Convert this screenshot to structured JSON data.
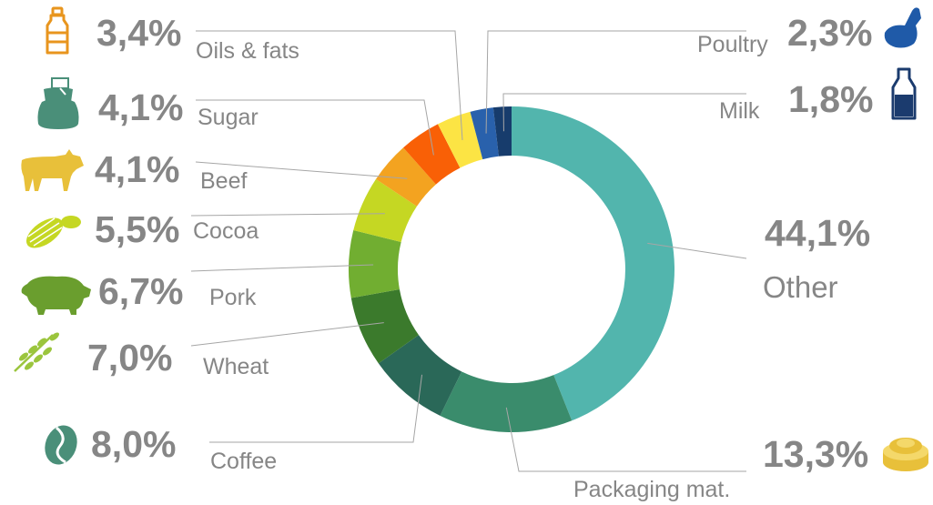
{
  "chart_data": {
    "type": "donut",
    "unit": "%",
    "slices": [
      {
        "label": "Other",
        "value": 44.1,
        "display": "44,1%",
        "color": "#52b5ad",
        "icon": ""
      },
      {
        "label": "Packaging mat.",
        "value": 13.3,
        "display": "13,3%",
        "color": "#3a8c6c",
        "icon": "packaging-icon"
      },
      {
        "label": "Coffee",
        "value": 8.0,
        "display": "8,0%",
        "color": "#2a6858",
        "icon": "coffee-bean-icon"
      },
      {
        "label": "Wheat",
        "value": 7.0,
        "display": "7,0%",
        "color": "#3b7a2c",
        "icon": "wheat-icon"
      },
      {
        "label": "Pork",
        "value": 6.7,
        "display": "6,7%",
        "color": "#71ae31",
        "icon": "pig-icon"
      },
      {
        "label": "Cocoa",
        "value": 5.5,
        "display": "5,5%",
        "color": "#c5d723",
        "icon": "cocoa-pod-icon"
      },
      {
        "label": "Beef",
        "value": 4.1,
        "display": "4,1%",
        "color": "#f3a320",
        "icon": "cow-icon"
      },
      {
        "label": "Sugar",
        "value": 4.1,
        "display": "4,1%",
        "color": "#f96006",
        "icon": "sugar-sack-icon"
      },
      {
        "label": "Oils & fats",
        "value": 3.4,
        "display": "3,4%",
        "color": "#fce444",
        "icon": "oil-bottle-icon"
      },
      {
        "label": "Poultry",
        "value": 2.3,
        "display": "2,3%",
        "color": "#2961ac",
        "icon": "chicken-icon"
      },
      {
        "label": "Milk",
        "value": 1.8,
        "display": "1,8%",
        "color": "#173c6c",
        "icon": "milk-bottle-icon"
      }
    ]
  },
  "colors": {
    "label_grey": "#868686",
    "leader_line": "#a6a6a6",
    "icon_teal": "#4a8f79",
    "icon_gold": "#e8c03a",
    "icon_green": "#6a9e2e",
    "icon_orange": "#e8951e",
    "icon_navy": "#1b3b6e",
    "icon_blue": "#1f5aa8"
  }
}
